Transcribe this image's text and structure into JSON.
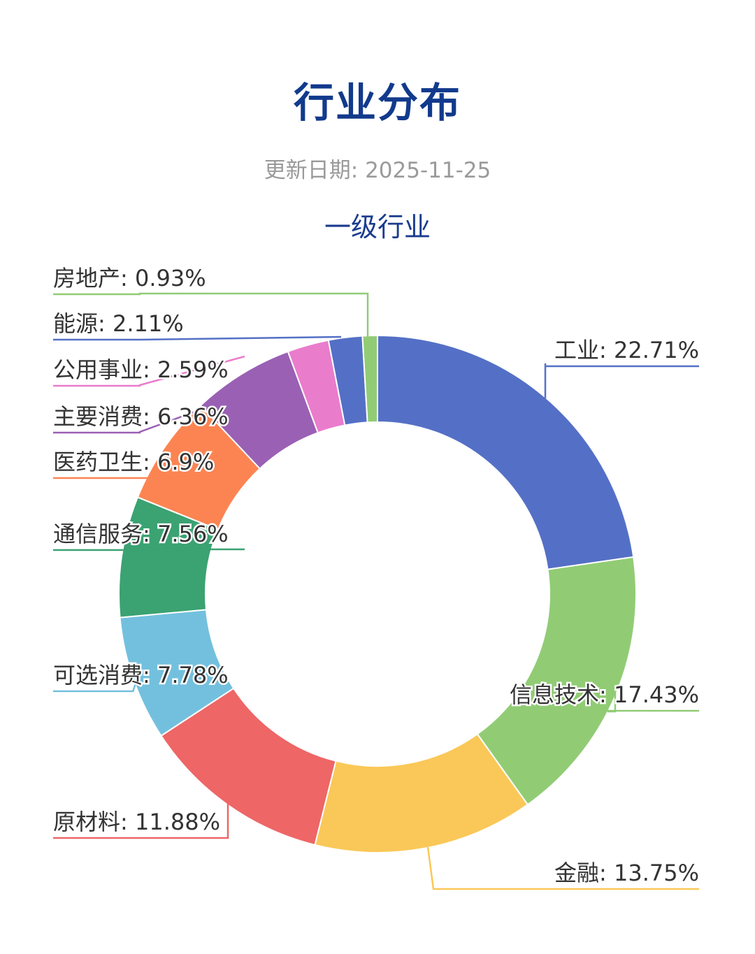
{
  "page": {
    "title": "行业分布",
    "update_label": "更新日期:",
    "update_date": "2025-11-25"
  },
  "chart_data": {
    "type": "pie",
    "subtype": "donut",
    "title": "一级行业",
    "start_angle_deg": 0,
    "direction": "clockwise",
    "slices": [
      {
        "label": "工业",
        "value": 22.71,
        "display": "22.71%",
        "color": "#5470c6"
      },
      {
        "label": "信息技术",
        "value": 17.43,
        "display": "17.43%",
        "color": "#91cc75"
      },
      {
        "label": "金融",
        "value": 13.75,
        "display": "13.75%",
        "color": "#fac858"
      },
      {
        "label": "原材料",
        "value": 11.88,
        "display": "11.88%",
        "color": "#ee6666"
      },
      {
        "label": "可选消费",
        "value": 7.78,
        "display": "7.78%",
        "color": "#73c0de"
      },
      {
        "label": "通信服务",
        "value": 7.56,
        "display": "7.56%",
        "color": "#3ba272"
      },
      {
        "label": "医药卫生",
        "value": 6.9,
        "display": "6.9%",
        "color": "#fc8452"
      },
      {
        "label": "主要消费",
        "value": 6.36,
        "display": "6.36%",
        "color": "#9a60b4"
      },
      {
        "label": "公用事业",
        "value": 2.59,
        "display": "2.59%",
        "color": "#ea7ccc"
      },
      {
        "label": "能源",
        "value": 2.11,
        "display": "2.11%",
        "color": "#5470c6"
      },
      {
        "label": "房地产",
        "value": 0.93,
        "display": "0.93%",
        "color": "#91cc75"
      }
    ]
  }
}
